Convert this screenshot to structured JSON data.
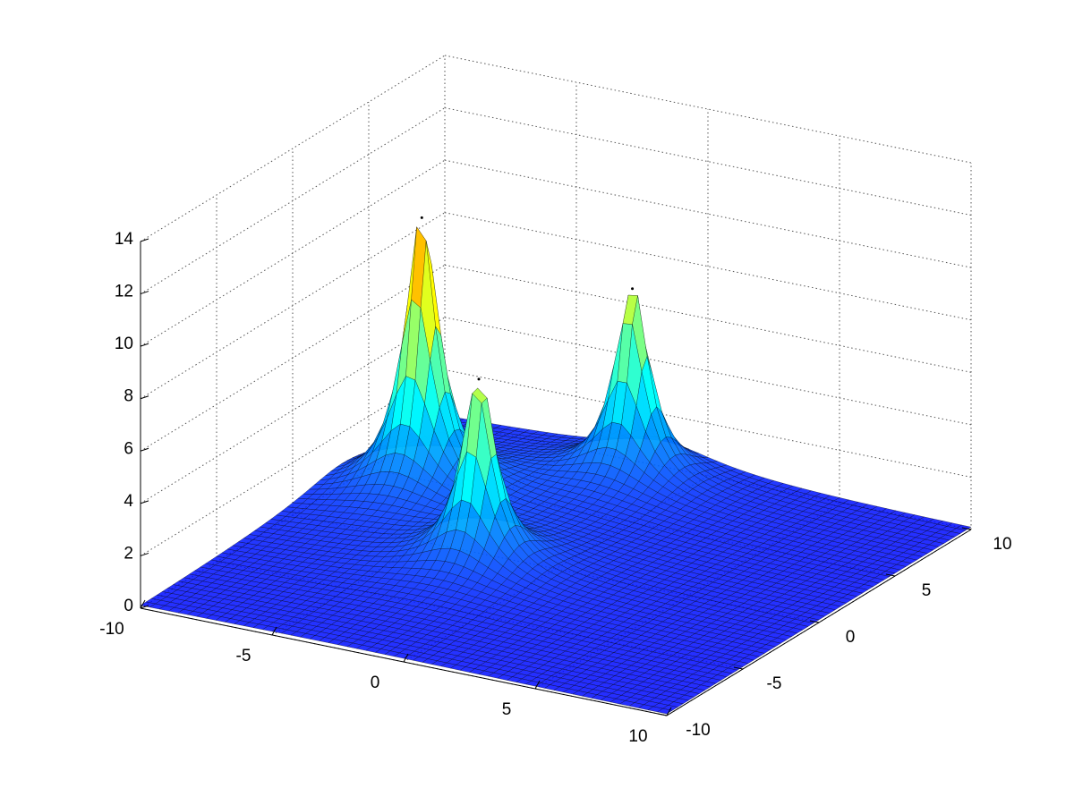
{
  "chart_data": {
    "type": "surface3d",
    "peaks": [
      {
        "x": -7,
        "y": 3.3,
        "z": 10.8
      },
      {
        "x": -2,
        "y": -1.6,
        "z": 7.4
      },
      {
        "x": -1.6,
        "y": 7.8,
        "z": 7.6
      }
    ],
    "xlim": [
      -10,
      10
    ],
    "xticks": [
      -10,
      -5,
      0,
      5,
      10
    ],
    "ylim": [
      -10,
      10
    ],
    "yticks": [
      -10,
      -5,
      0,
      5,
      10
    ],
    "zlim": [
      0,
      14
    ],
    "zticks": [
      0,
      2,
      4,
      6,
      8,
      10,
      12,
      14
    ],
    "colormap": "jet",
    "grid": true
  }
}
